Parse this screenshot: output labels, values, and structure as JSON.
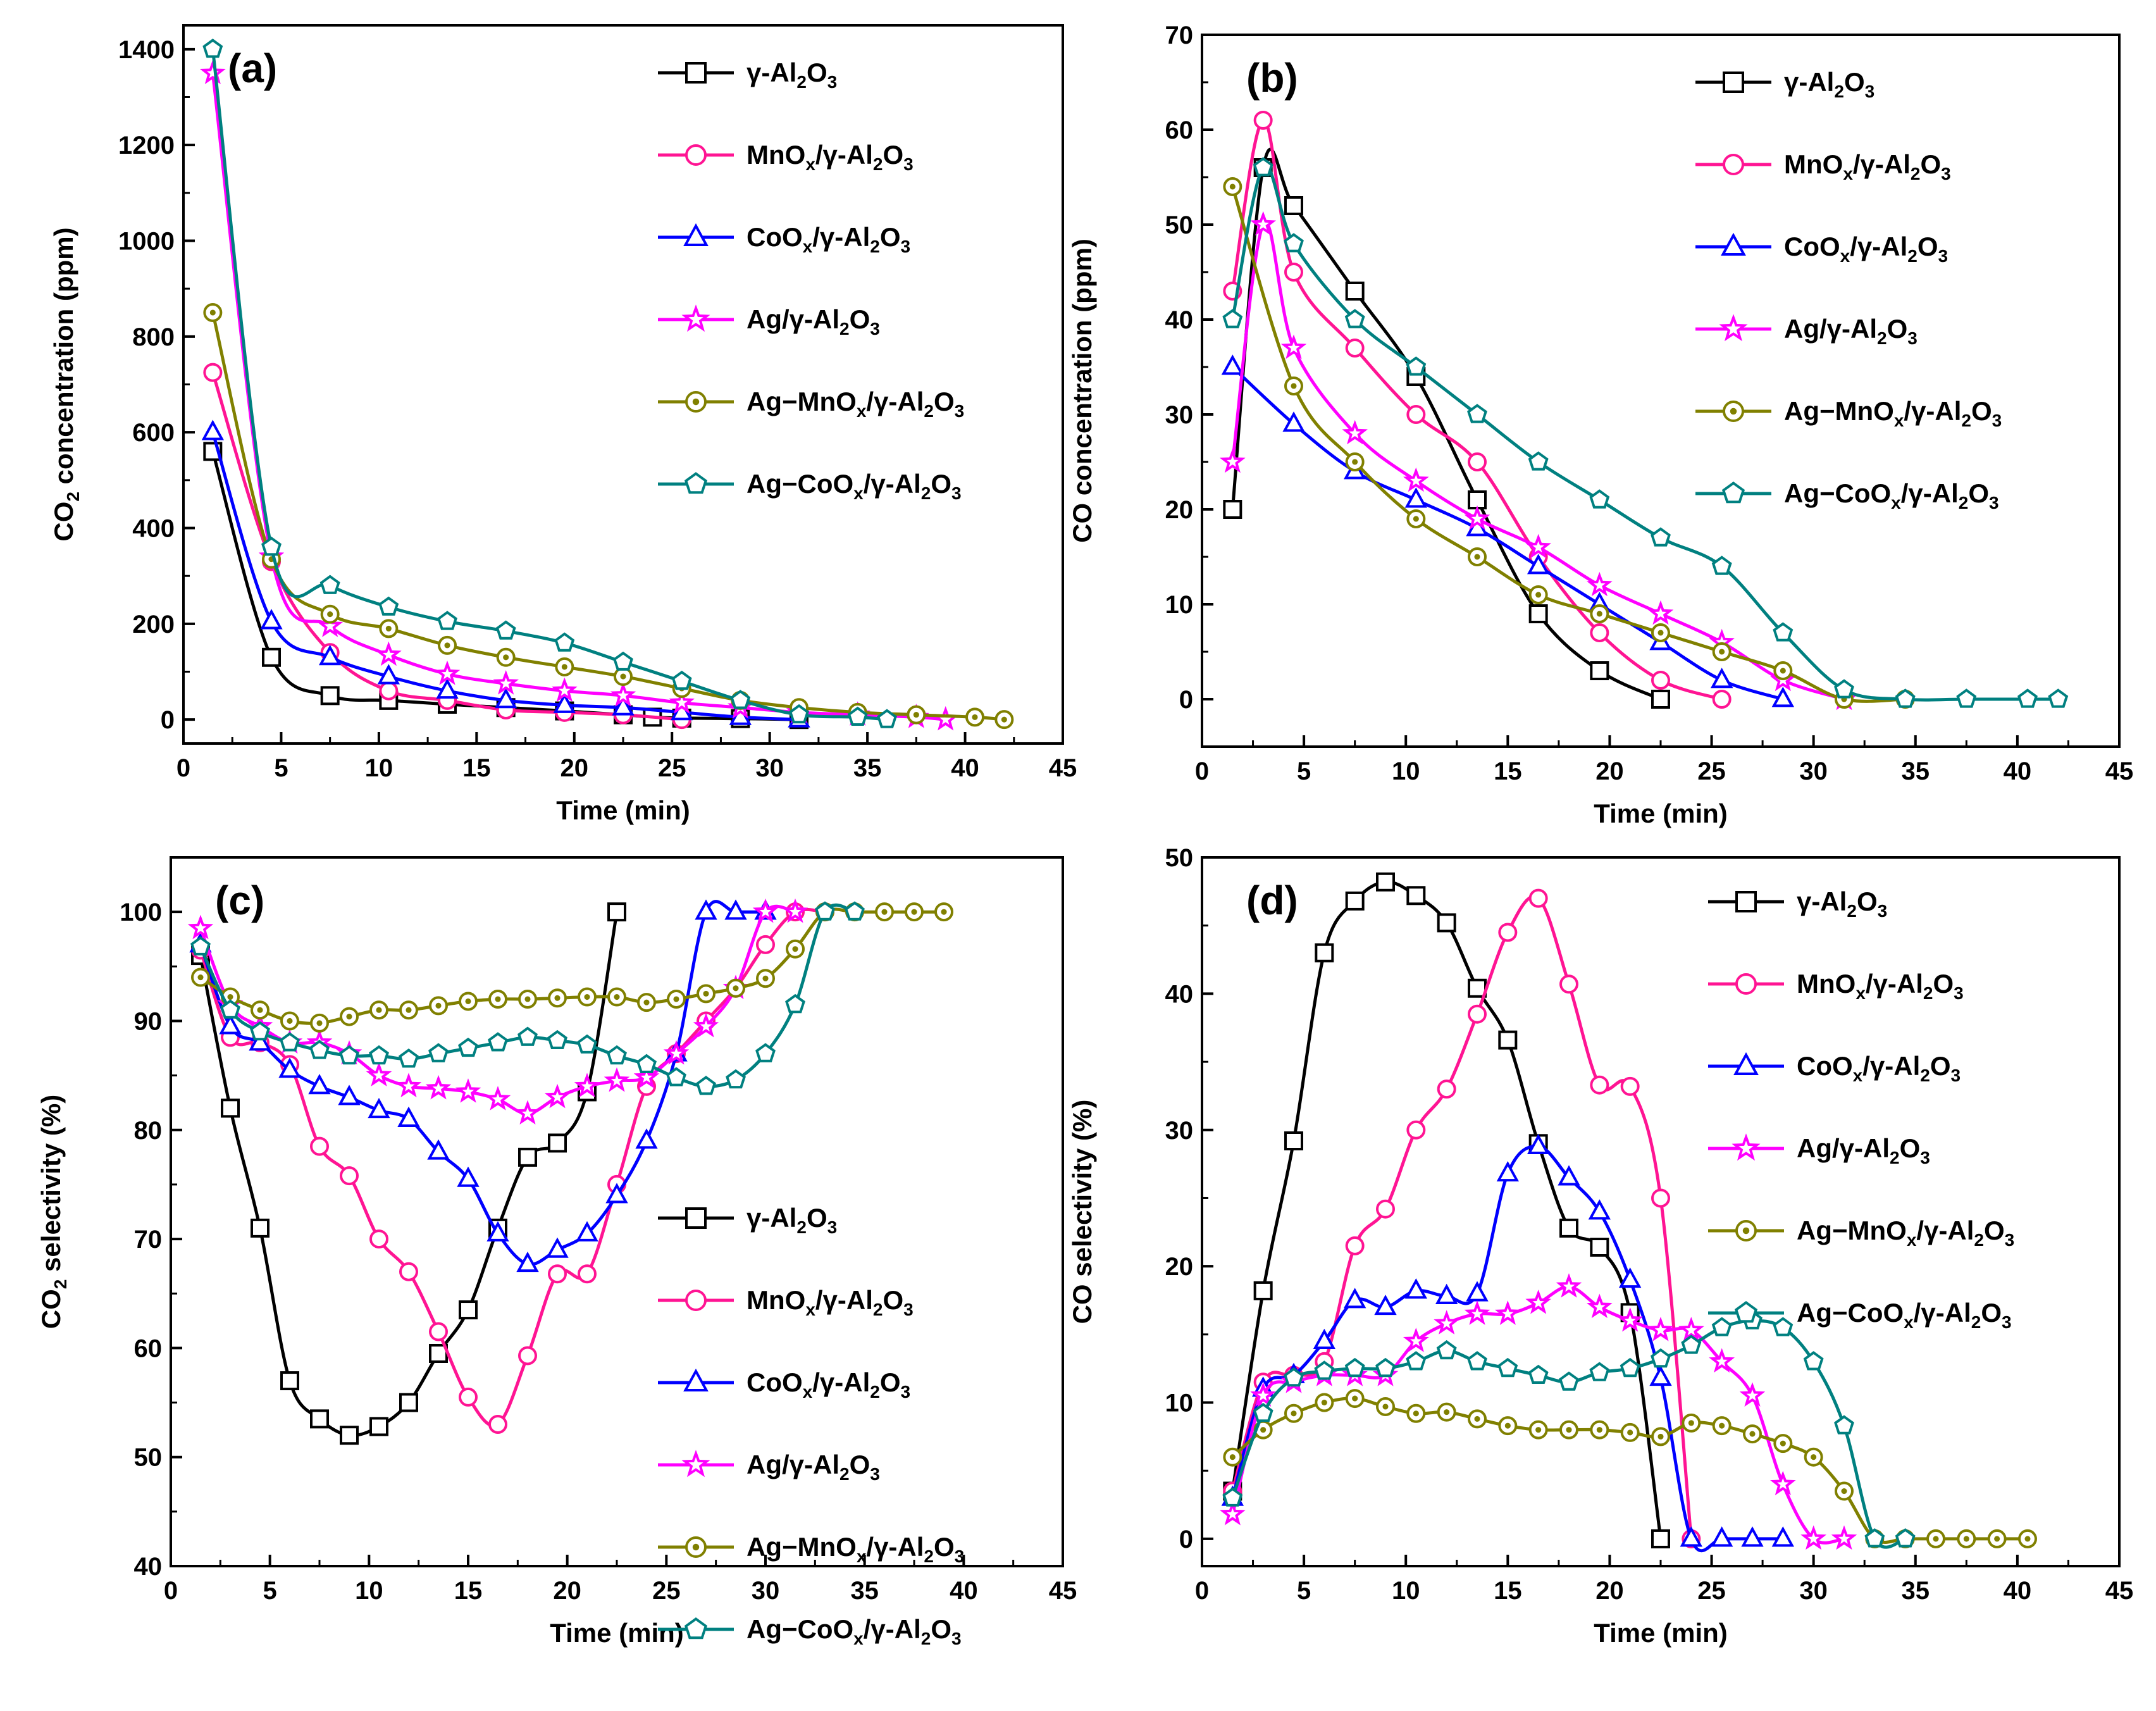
{
  "colors": {
    "gamma": "#000000",
    "mn": "#ff1493",
    "co": "#0000ff",
    "ag": "#ff00ff",
    "agmn": "#808000",
    "agco": "#008080"
  },
  "legend_series": [
    {
      "key": "gamma",
      "marker": "square",
      "pre": "γ-Al",
      "sub1": "2",
      "mid": "O",
      "sub2": "3",
      "post": ""
    },
    {
      "key": "mn",
      "marker": "circle",
      "pre": "MnO",
      "subx": "x",
      "pre2": "/γ-Al",
      "sub1": "2",
      "mid": "O",
      "sub2": "3"
    },
    {
      "key": "co",
      "marker": "triangle",
      "pre": "CoO",
      "subx": "x",
      "pre2": "/γ-Al",
      "sub1": "2",
      "mid": "O",
      "sub2": "3"
    },
    {
      "key": "ag",
      "marker": "star",
      "pre": "Ag",
      "pre2": "/γ-Al",
      "sub1": "2",
      "mid": "O",
      "sub2": "3"
    },
    {
      "key": "agmn",
      "marker": "dotcircle",
      "pre": "Ag−MnO",
      "subx": "x",
      "pre2": "/γ-Al",
      "sub1": "2",
      "mid": "O",
      "sub2": "3"
    },
    {
      "key": "agco",
      "marker": "pentagon",
      "pre": "Ag−CoO",
      "subx": "x",
      "pre2": "/γ-Al",
      "sub1": "2",
      "mid": "O",
      "sub2": "3"
    }
  ],
  "chart_data": [
    {
      "panel": "(a)",
      "type": "line",
      "xlabel": "Time (min)",
      "ylabel_pre": "CO",
      "ylabel_sub": "2",
      "ylabel_post": " concentration (ppm)",
      "xlim": [
        0,
        45
      ],
      "ylim": [
        -50,
        1450
      ],
      "xticks": [
        0,
        5,
        10,
        15,
        20,
        25,
        30,
        35,
        40,
        45
      ],
      "yticks": [
        0,
        200,
        400,
        600,
        800,
        1000,
        1200,
        1400
      ],
      "legend": "top-right",
      "series": [
        {
          "key": "gamma",
          "x": [
            1.5,
            4.5,
            7.5,
            10.5,
            13.5,
            16.5,
            19.5,
            22.5,
            24,
            25.5,
            28.5,
            31.5
          ],
          "y": [
            560,
            130,
            50,
            40,
            32,
            25,
            18,
            10,
            5,
            3,
            2,
            0
          ]
        },
        {
          "key": "mn",
          "x": [
            1.5,
            4.5,
            7.5,
            10.5,
            13.5,
            16.5,
            19.5,
            22.5,
            25.5
          ],
          "y": [
            725,
            330,
            140,
            60,
            40,
            20,
            15,
            10,
            0
          ]
        },
        {
          "key": "co",
          "x": [
            1.5,
            4.5,
            7.5,
            10.5,
            13.5,
            16.5,
            19.5,
            22.5,
            25.5,
            28.5,
            31.5
          ],
          "y": [
            600,
            205,
            130,
            90,
            60,
            40,
            30,
            25,
            15,
            5,
            0
          ]
        },
        {
          "key": "ag",
          "x": [
            1.5,
            4.5,
            7.5,
            10.5,
            13.5,
            16.5,
            19.5,
            22.5,
            25.5,
            28.5,
            31.5,
            34.5,
            37.5,
            39
          ],
          "y": [
            1350,
            340,
            195,
            135,
            95,
            75,
            60,
            50,
            35,
            25,
            15,
            10,
            5,
            0
          ]
        },
        {
          "key": "agmn",
          "x": [
            1.5,
            4.5,
            7.5,
            10.5,
            13.5,
            16.5,
            19.5,
            22.5,
            25.5,
            28.5,
            31.5,
            34.5,
            37.5,
            40.5,
            42
          ],
          "y": [
            850,
            335,
            220,
            190,
            155,
            130,
            110,
            90,
            65,
            40,
            25,
            15,
            10,
            5,
            0
          ]
        },
        {
          "key": "agco",
          "x": [
            1.5,
            4.5,
            7.5,
            10.5,
            13.5,
            16.5,
            19.5,
            22.5,
            25.5,
            28.5,
            31.5,
            34.5,
            36
          ],
          "y": [
            1400,
            360,
            280,
            235,
            205,
            185,
            160,
            120,
            80,
            40,
            10,
            5,
            0
          ]
        }
      ]
    },
    {
      "panel": "(b)",
      "type": "line",
      "xlabel": "Time (min)",
      "ylabel_pre": "CO concentration (ppm)",
      "ylabel_sub": "",
      "ylabel_post": "",
      "xlim": [
        0,
        45
      ],
      "ylim": [
        -5,
        70
      ],
      "xticks": [
        0,
        5,
        10,
        15,
        20,
        25,
        30,
        35,
        40,
        45
      ],
      "yticks": [
        0,
        10,
        20,
        30,
        40,
        50,
        60,
        70
      ],
      "legend": "top-right",
      "series": [
        {
          "key": "gamma",
          "x": [
            1.5,
            3,
            4.5,
            7.5,
            10.5,
            13.5,
            16.5,
            19.5,
            22.5
          ],
          "y": [
            20,
            56,
            52,
            43,
            34,
            21,
            9,
            3,
            0
          ]
        },
        {
          "key": "mn",
          "x": [
            1.5,
            3,
            4.5,
            7.5,
            10.5,
            13.5,
            16.5,
            19.5,
            22.5,
            25.5
          ],
          "y": [
            43,
            61,
            45,
            37,
            30,
            25,
            15,
            7,
            2,
            0
          ]
        },
        {
          "key": "co",
          "x": [
            1.5,
            4.5,
            7.5,
            10.5,
            13.5,
            16.5,
            19.5,
            22.5,
            25.5,
            28.5
          ],
          "y": [
            35,
            29,
            24,
            21,
            18,
            14,
            10,
            6,
            2,
            0
          ]
        },
        {
          "key": "ag",
          "x": [
            1.5,
            3,
            4.5,
            7.5,
            10.5,
            13.5,
            16.5,
            19.5,
            22.5,
            25.5,
            28.5,
            31.5
          ],
          "y": [
            25,
            50,
            37,
            28,
            23,
            19,
            16,
            12,
            9,
            6,
            2,
            0
          ]
        },
        {
          "key": "agmn",
          "x": [
            1.5,
            4.5,
            7.5,
            10.5,
            13.5,
            16.5,
            19.5,
            22.5,
            25.5,
            28.5,
            31.5,
            34.5
          ],
          "y": [
            54,
            33,
            25,
            19,
            15,
            11,
            9,
            7,
            5,
            3,
            0,
            0
          ]
        },
        {
          "key": "agco",
          "x": [
            1.5,
            3,
            4.5,
            7.5,
            10.5,
            13.5,
            16.5,
            19.5,
            22.5,
            25.5,
            28.5,
            31.5,
            34.5,
            37.5,
            40.5,
            42
          ],
          "y": [
            40,
            56,
            48,
            40,
            35,
            30,
            25,
            21,
            17,
            14,
            7,
            1,
            0,
            0,
            0,
            0
          ]
        }
      ]
    },
    {
      "panel": "(c)",
      "type": "line",
      "xlabel": "Time (min)",
      "ylabel_pre": "CO",
      "ylabel_sub": "2",
      "ylabel_post": " selectivity (%)",
      "xlim": [
        0,
        45
      ],
      "ylim": [
        40,
        105
      ],
      "xticks": [
        0,
        5,
        10,
        15,
        20,
        25,
        30,
        35,
        40,
        45
      ],
      "yticks": [
        40,
        50,
        60,
        70,
        80,
        90,
        100
      ],
      "legend": "bottom-right",
      "series": [
        {
          "key": "gamma",
          "x": [
            1.5,
            3,
            4.5,
            6,
            7.5,
            9,
            10.5,
            12,
            13.5,
            15,
            16.5,
            18,
            19.5,
            21,
            22.5
          ],
          "y": [
            96,
            82,
            71,
            57,
            53.5,
            52,
            52.8,
            55,
            59.5,
            63.5,
            71,
            77.5,
            78.8,
            83.5,
            100
          ]
        },
        {
          "key": "mn",
          "x": [
            1.5,
            3,
            4.5,
            6,
            7.5,
            9,
            10.5,
            12,
            13.5,
            15,
            16.5,
            18,
            19.5,
            21,
            22.5,
            24,
            25.5,
            27,
            28.5,
            30,
            31.5,
            33
          ],
          "y": [
            96.5,
            88.5,
            88,
            86,
            78.5,
            75.8,
            70,
            67,
            61.5,
            55.5,
            53,
            59.3,
            66.8,
            66.8,
            75,
            84,
            87,
            90,
            93,
            97,
            100,
            100
          ]
        },
        {
          "key": "co",
          "x": [
            1.5,
            3,
            4.5,
            6,
            7.5,
            9,
            10.5,
            12,
            13.5,
            15,
            16.5,
            18,
            19.5,
            21,
            22.5,
            24,
            25.5,
            27,
            28.5,
            30
          ],
          "y": [
            97,
            89.5,
            88,
            85.5,
            84,
            83,
            81.8,
            81,
            78,
            75.5,
            70.5,
            67.7,
            69,
            70.5,
            74,
            79,
            87,
            100,
            100,
            100
          ]
        },
        {
          "key": "ag",
          "x": [
            1.5,
            3,
            4.5,
            6,
            7.5,
            9,
            10.5,
            12,
            13.5,
            15,
            16.5,
            18,
            19.5,
            21,
            22.5,
            24,
            25.5,
            27,
            28.5,
            30,
            31.5
          ],
          "y": [
            98.5,
            91.5,
            89.5,
            88,
            88,
            87,
            85,
            84,
            83.8,
            83.5,
            82.8,
            81.5,
            83,
            84,
            84.5,
            84.8,
            87,
            89.5,
            93,
            100,
            100
          ]
        },
        {
          "key": "agmn",
          "x": [
            1.5,
            3,
            4.5,
            6,
            7.5,
            9,
            10.5,
            12,
            13.5,
            15,
            16.5,
            18,
            19.5,
            21,
            22.5,
            24,
            25.5,
            27,
            28.5,
            30,
            31.5,
            33,
            34.5,
            36,
            37.5,
            39
          ],
          "y": [
            94,
            92.2,
            91,
            90,
            89.8,
            90.4,
            91,
            91,
            91.4,
            91.8,
            92,
            92,
            92.1,
            92.2,
            92.2,
            91.7,
            92,
            92.5,
            93,
            93.9,
            96.6,
            100,
            100,
            100,
            100,
            100
          ]
        },
        {
          "key": "agco",
          "x": [
            1.5,
            3,
            4.5,
            6,
            7.5,
            9,
            10.5,
            12,
            13.5,
            15,
            16.5,
            18,
            19.5,
            21,
            22.5,
            24,
            25.5,
            27,
            28.5,
            30,
            31.5,
            33,
            34.5
          ],
          "y": [
            96.8,
            91,
            89,
            88,
            87.3,
            86.8,
            86.8,
            86.5,
            87,
            87.5,
            88,
            88.5,
            88.2,
            87.8,
            86.8,
            86,
            84.8,
            84,
            84.6,
            87,
            91.5,
            100,
            100
          ]
        }
      ]
    },
    {
      "panel": "(d)",
      "type": "line",
      "xlabel": "Time (min)",
      "ylabel_pre": "CO selectivity (%)",
      "ylabel_sub": "",
      "ylabel_post": "",
      "xlim": [
        0,
        45
      ],
      "ylim": [
        -2,
        50
      ],
      "xticks": [
        0,
        5,
        10,
        15,
        20,
        25,
        30,
        35,
        40,
        45
      ],
      "yticks": [
        0,
        10,
        20,
        30,
        40,
        50
      ],
      "legend": "top-right",
      "series": [
        {
          "key": "gamma",
          "x": [
            1.5,
            3,
            4.5,
            6,
            7.5,
            9,
            10.5,
            12,
            13.5,
            15,
            16.5,
            18,
            19.5,
            21,
            22.5
          ],
          "y": [
            3.5,
            18.2,
            29.2,
            43,
            46.8,
            48.2,
            47.2,
            45.2,
            40.4,
            36.6,
            29,
            22.8,
            21.4,
            16.6,
            0
          ]
        },
        {
          "key": "mn",
          "x": [
            1.5,
            3,
            4.5,
            6,
            7.5,
            9,
            10.5,
            12,
            13.5,
            15,
            16.5,
            18,
            19.5,
            21,
            22.5,
            24
          ],
          "y": [
            3.5,
            11.5,
            12,
            13,
            21.5,
            24.2,
            30,
            33,
            38.5,
            44.5,
            47,
            40.7,
            33.3,
            33.2,
            25,
            0
          ]
        },
        {
          "key": "co",
          "x": [
            1.5,
            3,
            4.5,
            6,
            7.5,
            9,
            10.5,
            12,
            13.5,
            15,
            16.5,
            18,
            19.5,
            21,
            22.5,
            24,
            25.5,
            27,
            28.5
          ],
          "y": [
            3,
            11,
            12,
            14.5,
            17.5,
            17,
            18.2,
            17.8,
            18,
            26.8,
            28.8,
            26.5,
            24,
            19,
            11.8,
            0,
            0,
            0,
            0
          ]
        },
        {
          "key": "ag",
          "x": [
            1.5,
            3,
            4.5,
            6,
            7.5,
            9,
            10.5,
            12,
            13.5,
            15,
            16.5,
            18,
            19.5,
            21,
            22.5,
            24,
            25.5,
            27,
            28.5,
            30,
            31.5
          ],
          "y": [
            1.8,
            10.5,
            11.5,
            12,
            12,
            12,
            14.5,
            15.8,
            16.5,
            16.5,
            17.3,
            18.5,
            17,
            16,
            15.3,
            15.3,
            13,
            10.5,
            4,
            0,
            0
          ]
        },
        {
          "key": "agmn",
          "x": [
            1.5,
            3,
            4.5,
            6,
            7.5,
            9,
            10.5,
            12,
            13.5,
            15,
            16.5,
            18,
            19.5,
            21,
            22.5,
            24,
            25.5,
            27,
            28.5,
            30,
            31.5,
            33,
            34.5,
            36,
            37.5,
            39,
            40.5
          ],
          "y": [
            6,
            8,
            9.2,
            10,
            10.3,
            9.7,
            9.2,
            9.3,
            8.8,
            8.3,
            8,
            8,
            8,
            7.8,
            7.5,
            8.5,
            8.3,
            7.7,
            7,
            6,
            3.5,
            0,
            0,
            0,
            0,
            0,
            0
          ]
        },
        {
          "key": "agco",
          "x": [
            1.5,
            3,
            4.5,
            6,
            7.5,
            9,
            10.5,
            12,
            13.5,
            15,
            16.5,
            18,
            19.5,
            21,
            22.5,
            24,
            25.5,
            27,
            28.5,
            30,
            31.5,
            33,
            34.5
          ],
          "y": [
            3,
            9.2,
            11.8,
            12.3,
            12.5,
            12.5,
            13,
            13.8,
            13,
            12.5,
            12,
            11.5,
            12.2,
            12.5,
            13.2,
            14.2,
            15.5,
            16,
            15.5,
            13,
            8.3,
            0,
            0
          ]
        }
      ]
    }
  ]
}
